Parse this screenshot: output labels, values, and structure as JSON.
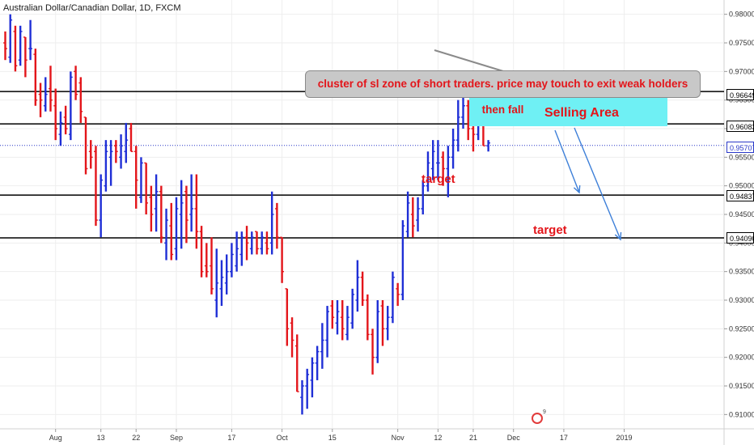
{
  "header": {
    "title": "Australian Dollar/Canadian Dollar, 1D, FXCM"
  },
  "annotations": {
    "callout_text": "cluster of sl zone of short traders. price may touch to exit weak holders then fall",
    "zone_label": "Selling Area",
    "target_1": "target",
    "target_2": "target"
  },
  "price_tags": {
    "level_1": "0.96649",
    "level_2": "0.96083",
    "current": "0.95707",
    "level_3": "0.94837",
    "level_4": "0.94090"
  },
  "logo": {
    "sup": "9"
  },
  "colors": {
    "up": "#1f2fd6",
    "down": "#e3151a",
    "grid": "#eeeeee",
    "level": "#000000",
    "zone": "#6ff0f4"
  },
  "chart_data": {
    "type": "ohlc",
    "title": "Australian Dollar/Canadian Dollar, 1D, FXCM",
    "ylim": [
      0.9075,
      0.9825
    ],
    "y_ticks": [
      0.98,
      0.975,
      0.97,
      0.965,
      0.96,
      0.955,
      0.95,
      0.945,
      0.94,
      0.935,
      0.93,
      0.925,
      0.92,
      0.915,
      0.91
    ],
    "y_tick_labels": [
      "0.98000",
      "0.97500",
      "0.97000",
      "0.96500",
      "0.96000",
      "0.95500",
      "0.95000",
      "0.94500",
      "0.94000",
      "0.93500",
      "0.93000",
      "0.92500",
      "0.92000",
      "0.91500",
      "0.91000"
    ],
    "x_ticks": [
      {
        "label": "Aug",
        "bar": 10
      },
      {
        "label": "13",
        "bar": 19
      },
      {
        "label": "22",
        "bar": 26
      },
      {
        "label": "Sep",
        "bar": 34
      },
      {
        "label": "17",
        "bar": 45
      },
      {
        "label": "Oct",
        "bar": 55
      },
      {
        "label": "15",
        "bar": 65
      },
      {
        "label": "Nov",
        "bar": 78
      },
      {
        "label": "12",
        "bar": 86
      },
      {
        "label": "21",
        "bar": 93
      },
      {
        "label": "Dec",
        "bar": 101
      },
      {
        "label": "17",
        "bar": 111
      },
      {
        "label": "2019",
        "bar": 123
      }
    ],
    "levels": [
      0.96649,
      0.96083,
      0.94837,
      0.9409
    ],
    "current_price": 0.95707,
    "bars": [
      {
        "o": 0.975,
        "h": 0.977,
        "l": 0.972,
        "c": 0.974
      },
      {
        "o": 0.9725,
        "h": 0.98,
        "l": 0.9715,
        "c": 0.979
      },
      {
        "o": 0.977,
        "h": 0.978,
        "l": 0.97,
        "c": 0.971
      },
      {
        "o": 0.972,
        "h": 0.978,
        "l": 0.971,
        "c": 0.977
      },
      {
        "o": 0.976,
        "h": 0.976,
        "l": 0.969,
        "c": 0.972
      },
      {
        "o": 0.974,
        "h": 0.979,
        "l": 0.972,
        "c": 0.974
      },
      {
        "o": 0.973,
        "h": 0.974,
        "l": 0.964,
        "c": 0.965
      },
      {
        "o": 0.966,
        "h": 0.968,
        "l": 0.962,
        "c": 0.965
      },
      {
        "o": 0.964,
        "h": 0.969,
        "l": 0.963,
        "c": 0.966
      },
      {
        "o": 0.967,
        "h": 0.971,
        "l": 0.963,
        "c": 0.965
      },
      {
        "o": 0.964,
        "h": 0.967,
        "l": 0.958,
        "c": 0.96
      },
      {
        "o": 0.959,
        "h": 0.963,
        "l": 0.957,
        "c": 0.961
      },
      {
        "o": 0.962,
        "h": 0.964,
        "l": 0.959,
        "c": 0.96
      },
      {
        "o": 0.959,
        "h": 0.97,
        "l": 0.958,
        "c": 0.969
      },
      {
        "o": 0.97,
        "h": 0.971,
        "l": 0.965,
        "c": 0.966
      },
      {
        "o": 0.968,
        "h": 0.969,
        "l": 0.961,
        "c": 0.963
      },
      {
        "o": 0.962,
        "h": 0.962,
        "l": 0.952,
        "c": 0.953
      },
      {
        "o": 0.956,
        "h": 0.958,
        "l": 0.953,
        "c": 0.955
      },
      {
        "o": 0.956,
        "h": 0.957,
        "l": 0.943,
        "c": 0.944
      },
      {
        "o": 0.944,
        "h": 0.952,
        "l": 0.941,
        "c": 0.951
      },
      {
        "o": 0.95,
        "h": 0.958,
        "l": 0.949,
        "c": 0.956
      },
      {
        "o": 0.955,
        "h": 0.958,
        "l": 0.95,
        "c": 0.956
      },
      {
        "o": 0.957,
        "h": 0.958,
        "l": 0.954,
        "c": 0.956
      },
      {
        "o": 0.955,
        "h": 0.959,
        "l": 0.953,
        "c": 0.957
      },
      {
        "o": 0.956,
        "h": 0.961,
        "l": 0.954,
        "c": 0.958
      },
      {
        "o": 0.96,
        "h": 0.961,
        "l": 0.956,
        "c": 0.956
      },
      {
        "o": 0.956,
        "h": 0.957,
        "l": 0.946,
        "c": 0.951
      },
      {
        "o": 0.948,
        "h": 0.955,
        "l": 0.947,
        "c": 0.954
      },
      {
        "o": 0.954,
        "h": 0.954,
        "l": 0.945,
        "c": 0.947
      },
      {
        "o": 0.948,
        "h": 0.95,
        "l": 0.942,
        "c": 0.945
      },
      {
        "o": 0.946,
        "h": 0.952,
        "l": 0.942,
        "c": 0.949
      },
      {
        "o": 0.949,
        "h": 0.95,
        "l": 0.94,
        "c": 0.941
      },
      {
        "o": 0.94,
        "h": 0.946,
        "l": 0.937,
        "c": 0.944
      },
      {
        "o": 0.943,
        "h": 0.947,
        "l": 0.937,
        "c": 0.938
      },
      {
        "o": 0.939,
        "h": 0.948,
        "l": 0.937,
        "c": 0.946
      },
      {
        "o": 0.945,
        "h": 0.951,
        "l": 0.939,
        "c": 0.947
      },
      {
        "o": 0.949,
        "h": 0.95,
        "l": 0.94,
        "c": 0.944
      },
      {
        "o": 0.945,
        "h": 0.952,
        "l": 0.942,
        "c": 0.946
      },
      {
        "o": 0.946,
        "h": 0.952,
        "l": 0.939,
        "c": 0.942
      },
      {
        "o": 0.942,
        "h": 0.943,
        "l": 0.934,
        "c": 0.935
      },
      {
        "o": 0.936,
        "h": 0.94,
        "l": 0.934,
        "c": 0.935
      },
      {
        "o": 0.936,
        "h": 0.941,
        "l": 0.931,
        "c": 0.932
      },
      {
        "o": 0.93,
        "h": 0.939,
        "l": 0.927,
        "c": 0.933
      },
      {
        "o": 0.932,
        "h": 0.937,
        "l": 0.929,
        "c": 0.934
      },
      {
        "o": 0.933,
        "h": 0.938,
        "l": 0.931,
        "c": 0.935
      },
      {
        "o": 0.935,
        "h": 0.94,
        "l": 0.934,
        "c": 0.938
      },
      {
        "o": 0.936,
        "h": 0.942,
        "l": 0.935,
        "c": 0.939
      },
      {
        "o": 0.938,
        "h": 0.942,
        "l": 0.936,
        "c": 0.941
      },
      {
        "o": 0.941,
        "h": 0.943,
        "l": 0.937,
        "c": 0.94
      },
      {
        "o": 0.939,
        "h": 0.942,
        "l": 0.938,
        "c": 0.941
      },
      {
        "o": 0.942,
        "h": 0.942,
        "l": 0.938,
        "c": 0.939
      },
      {
        "o": 0.939,
        "h": 0.942,
        "l": 0.938,
        "c": 0.941
      },
      {
        "o": 0.94,
        "h": 0.942,
        "l": 0.938,
        "c": 0.939
      },
      {
        "o": 0.94,
        "h": 0.949,
        "l": 0.938,
        "c": 0.945
      },
      {
        "o": 0.946,
        "h": 0.947,
        "l": 0.939,
        "c": 0.941
      },
      {
        "o": 0.941,
        "h": 0.941,
        "l": 0.933,
        "c": 0.935
      },
      {
        "o": 0.932,
        "h": 0.932,
        "l": 0.922,
        "c": 0.925
      },
      {
        "o": 0.926,
        "h": 0.927,
        "l": 0.92,
        "c": 0.923
      },
      {
        "o": 0.922,
        "h": 0.924,
        "l": 0.914,
        "c": 0.914
      },
      {
        "o": 0.913,
        "h": 0.916,
        "l": 0.91,
        "c": 0.915
      },
      {
        "o": 0.915,
        "h": 0.918,
        "l": 0.911,
        "c": 0.917
      },
      {
        "o": 0.916,
        "h": 0.92,
        "l": 0.913,
        "c": 0.919
      },
      {
        "o": 0.919,
        "h": 0.922,
        "l": 0.916,
        "c": 0.921
      },
      {
        "o": 0.921,
        "h": 0.926,
        "l": 0.918,
        "c": 0.923
      },
      {
        "o": 0.923,
        "h": 0.929,
        "l": 0.92,
        "c": 0.928
      },
      {
        "o": 0.929,
        "h": 0.93,
        "l": 0.925,
        "c": 0.927
      },
      {
        "o": 0.926,
        "h": 0.93,
        "l": 0.924,
        "c": 0.928
      },
      {
        "o": 0.927,
        "h": 0.93,
        "l": 0.923,
        "c": 0.925
      },
      {
        "o": 0.924,
        "h": 0.929,
        "l": 0.923,
        "c": 0.927
      },
      {
        "o": 0.926,
        "h": 0.932,
        "l": 0.925,
        "c": 0.931
      },
      {
        "o": 0.93,
        "h": 0.937,
        "l": 0.928,
        "c": 0.934
      },
      {
        "o": 0.934,
        "h": 0.935,
        "l": 0.929,
        "c": 0.93
      },
      {
        "o": 0.93,
        "h": 0.931,
        "l": 0.923,
        "c": 0.924
      },
      {
        "o": 0.924,
        "h": 0.925,
        "l": 0.917,
        "c": 0.92
      },
      {
        "o": 0.92,
        "h": 0.93,
        "l": 0.919,
        "c": 0.928
      },
      {
        "o": 0.929,
        "h": 0.93,
        "l": 0.922,
        "c": 0.925
      },
      {
        "o": 0.925,
        "h": 0.929,
        "l": 0.923,
        "c": 0.927
      },
      {
        "o": 0.927,
        "h": 0.935,
        "l": 0.926,
        "c": 0.934
      },
      {
        "o": 0.932,
        "h": 0.933,
        "l": 0.929,
        "c": 0.931
      },
      {
        "o": 0.931,
        "h": 0.944,
        "l": 0.93,
        "c": 0.943
      },
      {
        "o": 0.942,
        "h": 0.949,
        "l": 0.941,
        "c": 0.947
      },
      {
        "o": 0.945,
        "h": 0.948,
        "l": 0.941,
        "c": 0.943
      },
      {
        "o": 0.944,
        "h": 0.948,
        "l": 0.942,
        "c": 0.946
      },
      {
        "o": 0.946,
        "h": 0.951,
        "l": 0.945,
        "c": 0.95
      },
      {
        "o": 0.95,
        "h": 0.956,
        "l": 0.949,
        "c": 0.954
      },
      {
        "o": 0.953,
        "h": 0.958,
        "l": 0.951,
        "c": 0.956
      },
      {
        "o": 0.954,
        "h": 0.958,
        "l": 0.951,
        "c": 0.954
      },
      {
        "o": 0.955,
        "h": 0.956,
        "l": 0.95,
        "c": 0.953
      },
      {
        "o": 0.953,
        "h": 0.957,
        "l": 0.948,
        "c": 0.955
      },
      {
        "o": 0.955,
        "h": 0.96,
        "l": 0.953,
        "c": 0.958
      },
      {
        "o": 0.958,
        "h": 0.965,
        "l": 0.956,
        "c": 0.962
      },
      {
        "o": 0.962,
        "h": 0.966,
        "l": 0.96,
        "c": 0.964
      },
      {
        "o": 0.964,
        "h": 0.965,
        "l": 0.958,
        "c": 0.96
      },
      {
        "o": 0.96,
        "h": 0.964,
        "l": 0.956,
        "c": 0.959
      },
      {
        "o": 0.959,
        "h": 0.967,
        "l": 0.958,
        "c": 0.962
      },
      {
        "o": 0.961,
        "h": 0.961,
        "l": 0.957,
        "c": 0.957
      },
      {
        "o": 0.957,
        "h": 0.958,
        "l": 0.956,
        "c": 0.9575
      }
    ]
  }
}
